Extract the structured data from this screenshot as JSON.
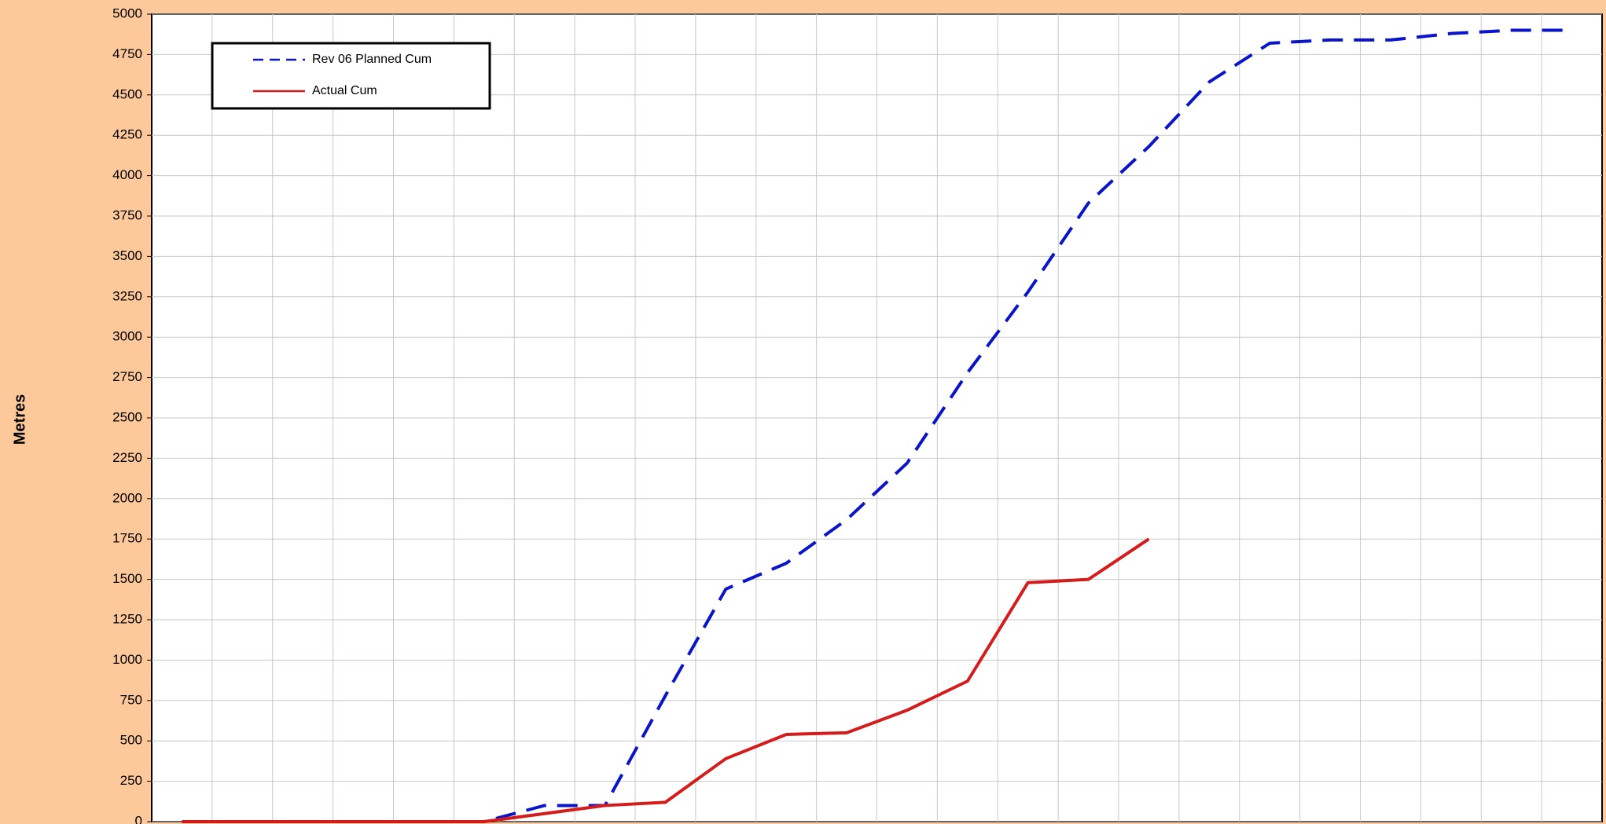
{
  "chart_data": {
    "type": "line",
    "y_label": "Metres",
    "categories": [
      null,
      null,
      null,
      null,
      null,
      null,
      null,
      null,
      null,
      null,
      null,
      null,
      null,
      null,
      null,
      null,
      null,
      null,
      null,
      null,
      null,
      null,
      null,
      null
    ],
    "series": [
      {
        "name": "Rev 06 Planned Cum",
        "color": "#0a14c8",
        "dashed": true,
        "values": [
          0,
          0,
          0,
          0,
          0,
          0,
          100,
          100,
          780,
          1440,
          1600,
          1870,
          2220,
          2780,
          3280,
          3830,
          4180,
          4580,
          4820,
          4840,
          4840,
          4880,
          4900,
          4900
        ]
      },
      {
        "name": "Actual Cum",
        "color": "#d41c1c",
        "dashed": false,
        "values": [
          0,
          0,
          0,
          0,
          0,
          0,
          50,
          100,
          120,
          390,
          540,
          550,
          690,
          870,
          1480,
          1500,
          1750,
          null,
          null,
          null,
          null,
          null,
          null,
          null
        ]
      }
    ],
    "ylim": [
      0,
      5000
    ],
    "yticks": [
      0,
      250,
      500,
      750,
      1000,
      1250,
      1500,
      1750,
      2000,
      2250,
      2500,
      2750,
      3000,
      3250,
      3500,
      3750,
      4000,
      4250,
      4500,
      4750,
      5000
    ],
    "grid": true,
    "legend": "top-left"
  }
}
